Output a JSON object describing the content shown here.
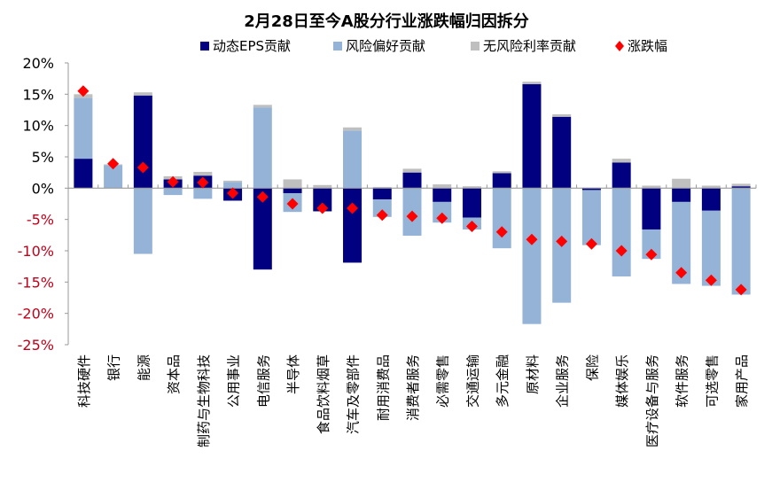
{
  "chart_data": {
    "type": "bar",
    "stacked": true,
    "title": "2月28日至今A股分行业涨跌幅归因拆分",
    "legend_position": "top",
    "grid": false,
    "ylim": [
      -25,
      20
    ],
    "yticks": [
      "20%",
      "15%",
      "10%",
      "5%",
      "0%",
      "-5%",
      "-10%",
      "-15%",
      "-20%",
      "-25%"
    ],
    "ytick_values": [
      20,
      15,
      10,
      5,
      0,
      -5,
      -10,
      -15,
      -20,
      -25
    ],
    "negative_tick_color": "#c0001a",
    "categories": [
      "科技硬件",
      "银行",
      "能源",
      "资本品",
      "制药与生物科技",
      "公用事业",
      "电信服务",
      "半导体",
      "食品饮料烟草",
      "汽车及零部件",
      "耐用消费品",
      "消费者服务",
      "必需零售",
      "交通运输",
      "多元金融",
      "原材料",
      "企业服务",
      "保险",
      "媒体娱乐",
      "医疗设备与服务",
      "软件服务",
      "可选零售",
      "家用产品"
    ],
    "series": [
      {
        "name": "动态EPS贡献",
        "kind": "bar",
        "color": "#000080",
        "values": [
          4.7,
          0.0,
          14.8,
          1.4,
          2.0,
          -2.0,
          -13.0,
          -0.8,
          -3.7,
          -11.9,
          -1.8,
          2.5,
          -2.2,
          -4.7,
          2.4,
          16.6,
          11.4,
          -0.3,
          4.1,
          -6.6,
          -2.2,
          -3.6,
          0.3
        ]
      },
      {
        "name": "风险偏好贡献",
        "kind": "bar",
        "color": "#95b3d7",
        "values": [
          9.7,
          3.7,
          -10.5,
          -1.1,
          -1.7,
          1.0,
          12.9,
          -3.0,
          0.0,
          9.2,
          -2.8,
          -7.6,
          -3.3,
          -1.9,
          -9.6,
          -21.7,
          -18.3,
          -8.8,
          -14.1,
          -4.7,
          -13.1,
          -12.0,
          -17.0
        ]
      },
      {
        "name": "无风险利率贡献",
        "kind": "bar",
        "color": "#bfbfbf",
        "values": [
          0.6,
          0.1,
          0.5,
          0.5,
          0.6,
          0.2,
          0.4,
          1.4,
          0.5,
          0.5,
          0.2,
          0.6,
          0.6,
          0.3,
          0.3,
          0.4,
          0.4,
          0.1,
          0.6,
          0.4,
          1.5,
          0.4,
          0.4
        ]
      },
      {
        "name": "涨跌幅",
        "kind": "marker",
        "marker": "diamond",
        "color": "#ff0000",
        "values": [
          15.5,
          3.9,
          3.3,
          1.0,
          0.9,
          -0.8,
          -1.4,
          -2.5,
          -3.2,
          -3.2,
          -4.3,
          -4.5,
          -4.8,
          -6.1,
          -7.0,
          -8.2,
          -8.5,
          -8.9,
          -10.0,
          -10.6,
          -13.5,
          -14.7,
          -16.2
        ]
      }
    ]
  }
}
